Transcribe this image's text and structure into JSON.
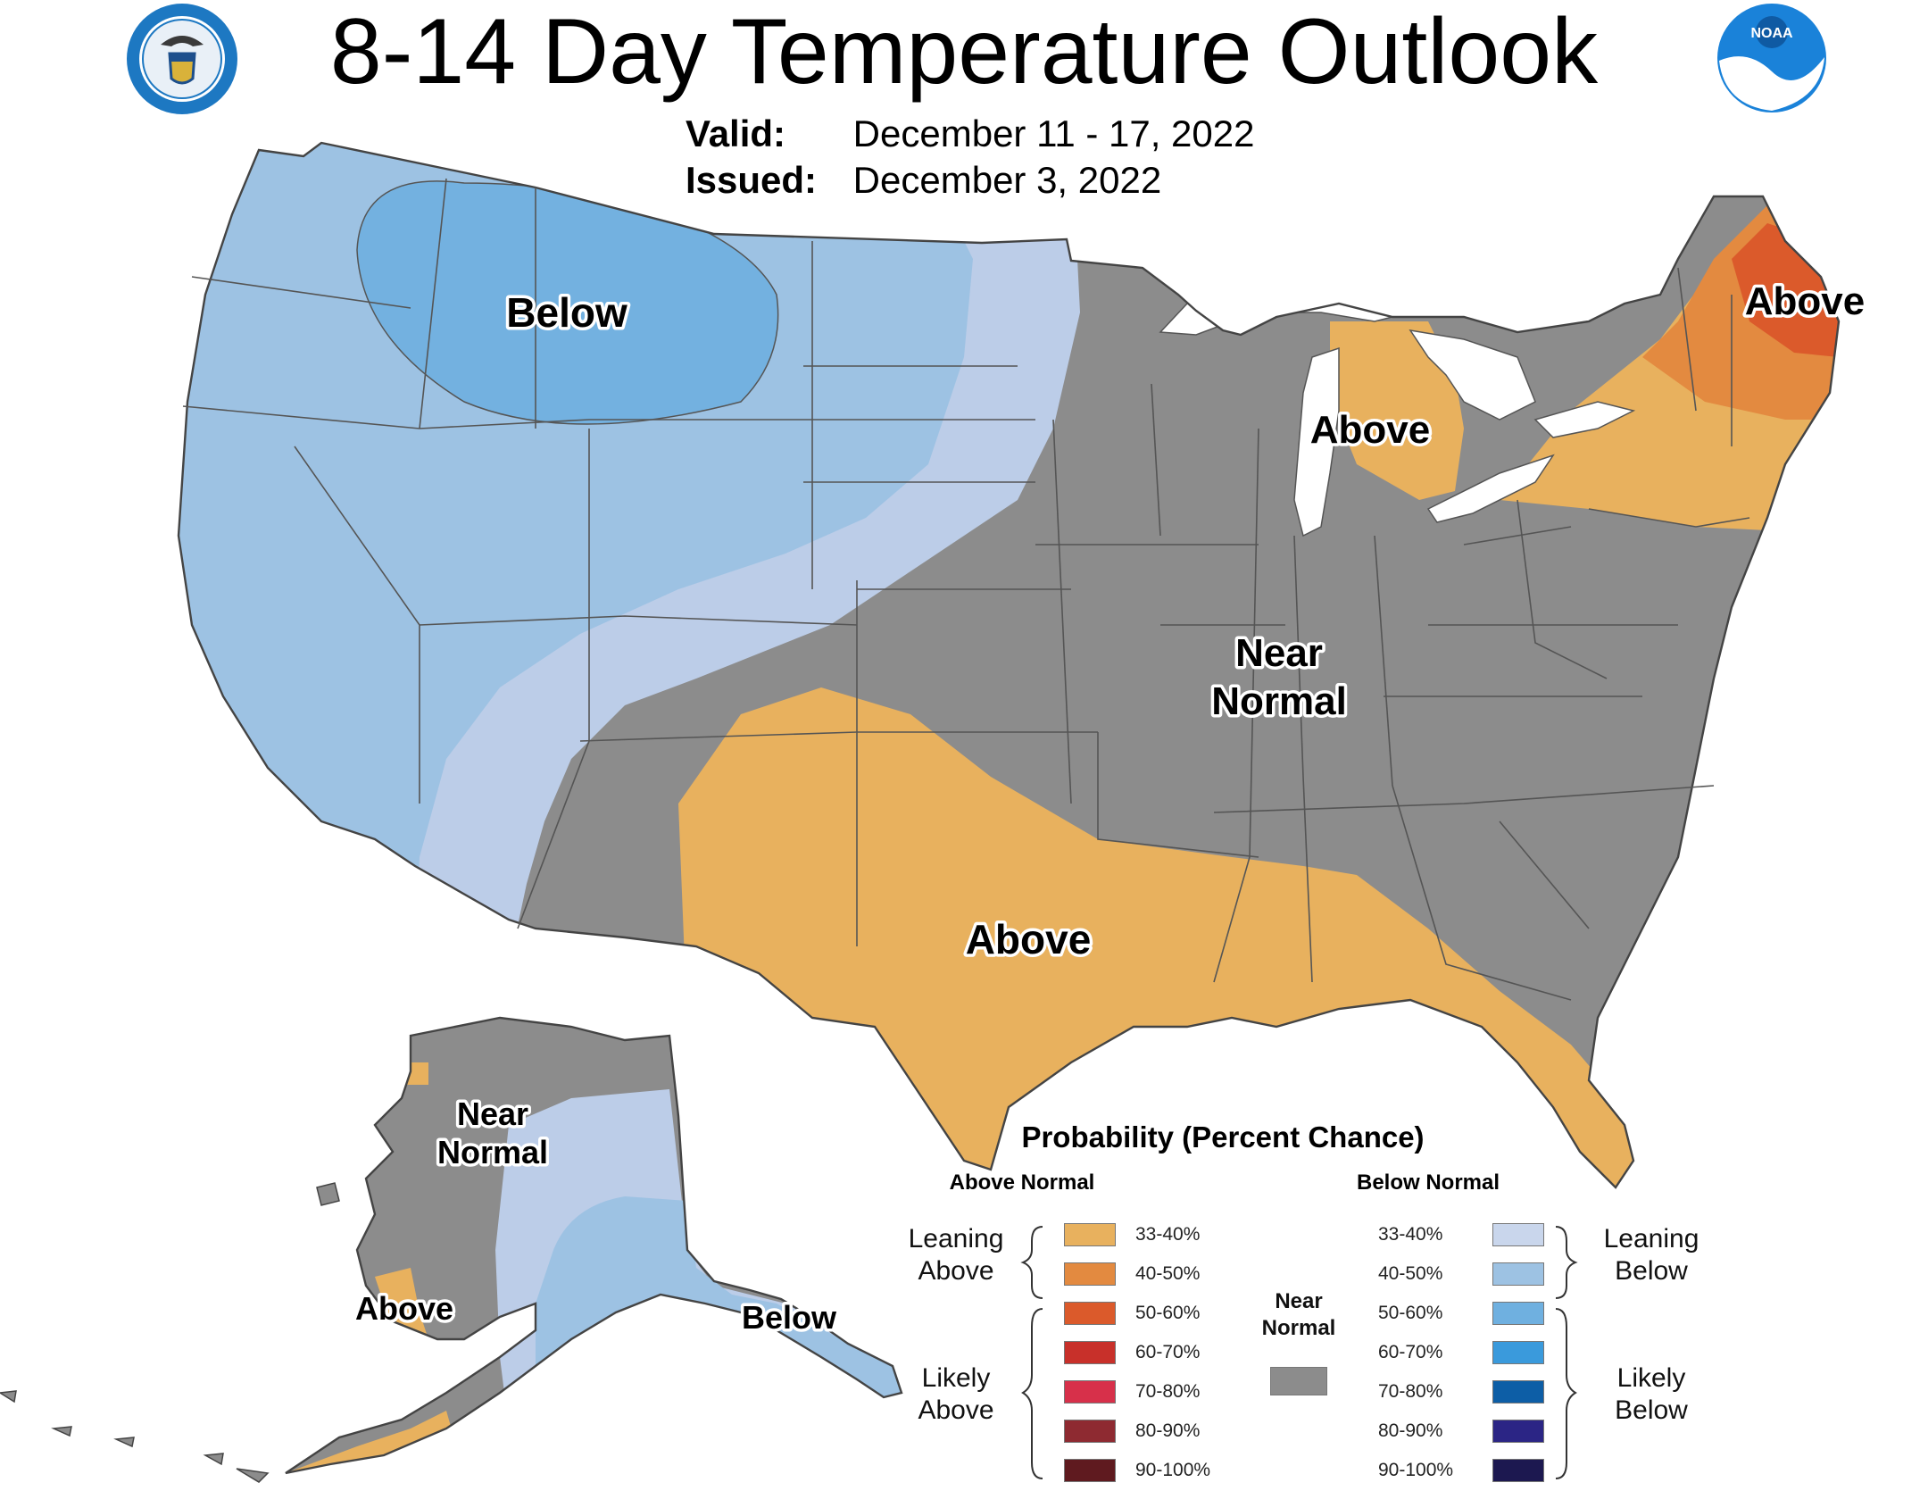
{
  "header": {
    "title": "8-14 Day Temperature Outlook",
    "valid_label": "Valid:",
    "valid_value": "December 11 - 17, 2022",
    "issued_label": "Issued:",
    "issued_value": "December 3, 2022",
    "noaa_logo_text": "NOAA"
  },
  "map": {
    "regions": [
      {
        "label": "Below",
        "category": "below-normal"
      },
      {
        "label": "Above",
        "category": "above-normal"
      },
      {
        "label": "Above",
        "category": "above-normal"
      },
      {
        "label": "Near Normal",
        "category": "near-normal"
      },
      {
        "label": "Above",
        "category": "above-normal"
      },
      {
        "label": "Near Normal",
        "category": "near-normal"
      },
      {
        "label": "Above",
        "category": "above-normal"
      },
      {
        "label": "Below",
        "category": "below-normal"
      }
    ],
    "near_line1": "Near",
    "near_line2": "Normal",
    "colors": {
      "below_33_40": "#bccde8",
      "below_40_50": "#9dc2e3",
      "below_50_60": "#73b1e0",
      "near_normal": "#8c8c8c",
      "above_33_40": "#e8b15e",
      "above_40_50": "#e38a40",
      "above_50_60": "#db5a2b",
      "great_lakes": "#ffffff"
    }
  },
  "legend": {
    "title": "Probability (Percent Chance)",
    "above_header": "Above Normal",
    "below_header": "Below Normal",
    "leaning_above": [
      "Leaning",
      "Above"
    ],
    "likely_above": [
      "Likely",
      "Above"
    ],
    "leaning_below": [
      "Leaning",
      "Below"
    ],
    "likely_below": [
      "Likely",
      "Below"
    ],
    "near_normal": [
      "Near",
      "Normal"
    ],
    "above_rows": [
      {
        "pct": "33-40%",
        "color": "#e8b15e"
      },
      {
        "pct": "40-50%",
        "color": "#e38a40"
      },
      {
        "pct": "50-60%",
        "color": "#db5a2b"
      },
      {
        "pct": "60-70%",
        "color": "#c8302a"
      },
      {
        "pct": "70-80%",
        "color": "#d7304a"
      },
      {
        "pct": "80-90%",
        "color": "#8e2a31"
      },
      {
        "pct": "90-100%",
        "color": "#5f1a1f"
      }
    ],
    "below_rows": [
      {
        "pct": "33-40%",
        "color": "#c9d6ec"
      },
      {
        "pct": "40-50%",
        "color": "#9dc2e3"
      },
      {
        "pct": "50-60%",
        "color": "#6fb0e0"
      },
      {
        "pct": "60-70%",
        "color": "#3a9adc"
      },
      {
        "pct": "70-80%",
        "color": "#0d5ea6"
      },
      {
        "pct": "80-90%",
        "color": "#2b2585"
      },
      {
        "pct": "90-100%",
        "color": "#1c1850"
      }
    ],
    "near_color": "#8c8c8c"
  }
}
